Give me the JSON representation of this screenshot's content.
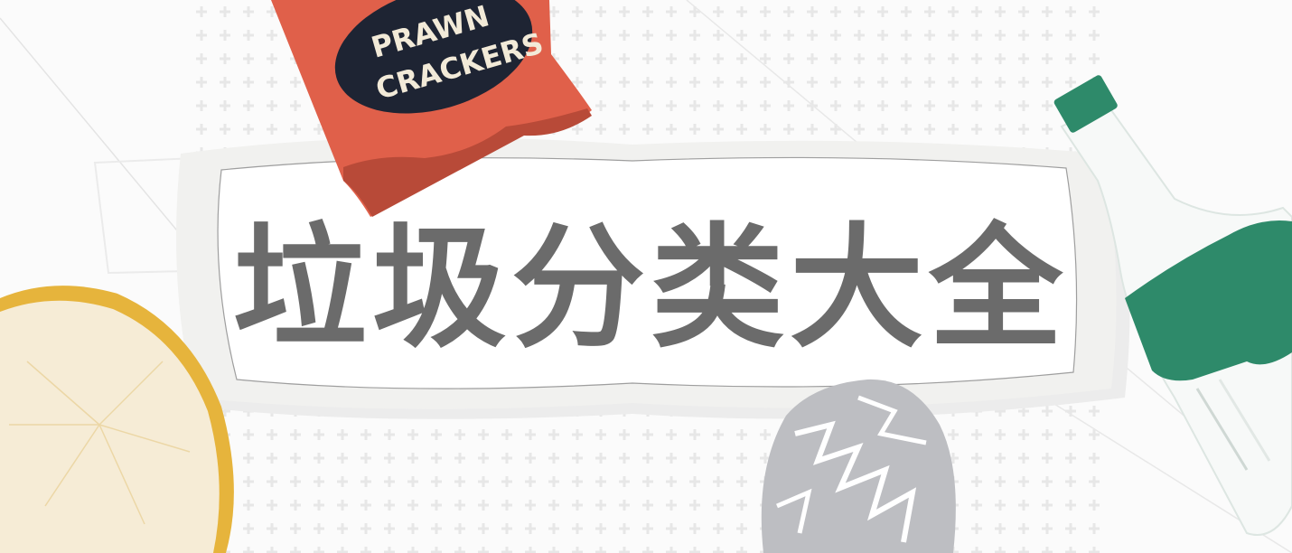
{
  "banner": {
    "title": "垃圾分类大全",
    "bag_label_line1": "PRAWN",
    "bag_label_line2": "CRACKERS"
  },
  "colors": {
    "title_text": "#6b6b6b",
    "bag_red": "#e0604a",
    "bag_label_bg": "#1e2433",
    "bottle_green": "#2e8a6a",
    "orange_rind": "#e6b43c",
    "foil_gray": "#bdbec2"
  },
  "icons": [
    "prawn-crackers-bag-icon",
    "plastic-bottle-icon",
    "orange-slice-icon",
    "crumpled-foil-icon",
    "cross-pattern-icon"
  ]
}
